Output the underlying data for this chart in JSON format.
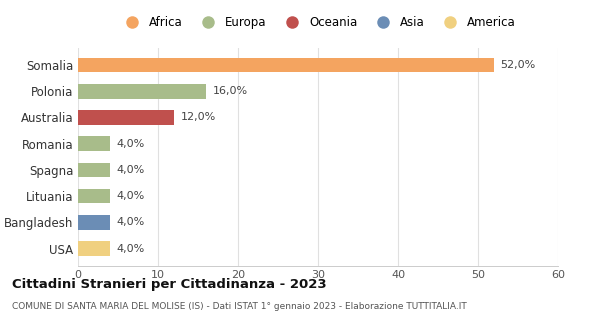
{
  "categories": [
    "Somalia",
    "Polonia",
    "Australia",
    "Romania",
    "Spagna",
    "Lituania",
    "Bangladesh",
    "USA"
  ],
  "values": [
    52.0,
    16.0,
    12.0,
    4.0,
    4.0,
    4.0,
    4.0,
    4.0
  ],
  "bar_colors": [
    "#F4A460",
    "#A8BC8A",
    "#C0504D",
    "#A8BC8A",
    "#A8BC8A",
    "#A8BC8A",
    "#6B8DB5",
    "#F0D080"
  ],
  "legend_labels": [
    "Africa",
    "Europa",
    "Oceania",
    "Asia",
    "America"
  ],
  "legend_colors": [
    "#F4A460",
    "#A8BC8A",
    "#C0504D",
    "#6B8DB5",
    "#F0D080"
  ],
  "title": "Cittadini Stranieri per Cittadinanza - 2023",
  "subtitle": "COMUNE DI SANTA MARIA DEL MOLISE (IS) - Dati ISTAT 1° gennaio 2023 - Elaborazione TUTTITALIA.IT",
  "xlim": [
    0,
    60
  ],
  "xticks": [
    0,
    10,
    20,
    30,
    40,
    50,
    60
  ],
  "value_labels": [
    "52,0%",
    "16,0%",
    "12,0%",
    "4,0%",
    "4,0%",
    "4,0%",
    "4,0%",
    "4,0%"
  ],
  "background_color": "#ffffff",
  "grid_color": "#e0e0e0"
}
